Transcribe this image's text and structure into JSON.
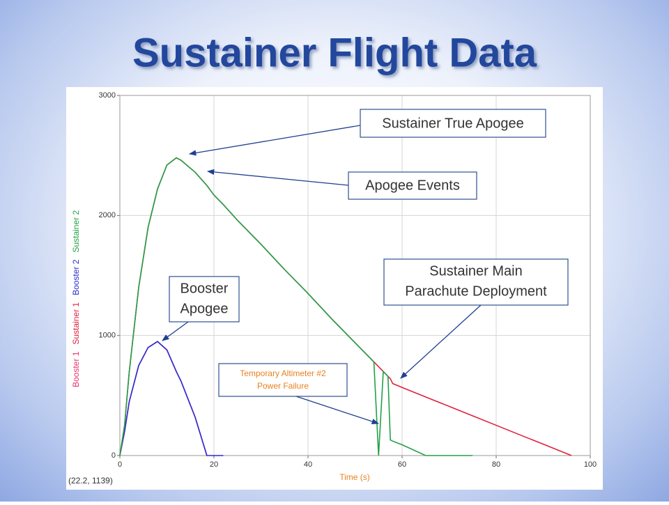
{
  "header": {
    "title": "Sustainer Flight Data"
  },
  "chart_data": {
    "type": "line",
    "x_label": "Time (s)",
    "readout": "(22.2, 1139)",
    "x": [
      0,
      1,
      2,
      4,
      6,
      8,
      10,
      12,
      13,
      16,
      18.5,
      20,
      22,
      25,
      30,
      35,
      40,
      45,
      50,
      54,
      55,
      56,
      57,
      57.5,
      58,
      60,
      65,
      70,
      75,
      80,
      85,
      90,
      96
    ],
    "series": [
      {
        "name": "Booster 1",
        "color": "#e8336b",
        "values": [
          0,
          200,
          450,
          750,
          900,
          950,
          880,
          700,
          620,
          320,
          0,
          null,
          null,
          null,
          null,
          null,
          null,
          null,
          null,
          null,
          null,
          null,
          null,
          null,
          null,
          null,
          null,
          null,
          null,
          null,
          null,
          null,
          null
        ]
      },
      {
        "name": "Sustainer 1",
        "color": "#e0203c",
        "values": [
          0,
          250,
          700,
          1400,
          1900,
          2220,
          2420,
          2480,
          2460,
          2360,
          2250,
          2170,
          2090,
          1960,
          1760,
          1550,
          1350,
          1140,
          940,
          780,
          740,
          700,
          660,
          640,
          600,
          567,
          488,
          410,
          331,
          252,
          173,
          95,
          0
        ]
      },
      {
        "name": "Booster 2",
        "color": "#2b2bd0",
        "values": [
          0,
          200,
          450,
          750,
          900,
          950,
          880,
          700,
          620,
          320,
          0,
          0,
          0,
          null,
          null,
          null,
          null,
          null,
          null,
          null,
          null,
          null,
          null,
          null,
          null,
          null,
          null,
          null,
          null,
          null,
          null,
          null,
          null
        ]
      },
      {
        "name": "Sustainer 2",
        "color": "#23a047",
        "values": [
          0,
          250,
          700,
          1400,
          1900,
          2220,
          2420,
          2480,
          2460,
          2360,
          2250,
          2170,
          2090,
          1960,
          1760,
          1550,
          1350,
          1140,
          940,
          780,
          0,
          700,
          660,
          130,
          120,
          90,
          0,
          0,
          0,
          null,
          null,
          null,
          null
        ]
      }
    ],
    "xlim": [
      0,
      100
    ],
    "ylim": [
      0,
      3000
    ],
    "xticks": [
      0,
      20,
      40,
      60,
      80,
      100
    ],
    "yticks": [
      0,
      1000,
      2000,
      3000
    ],
    "grid": true,
    "annotations": [
      {
        "lines": [
          "Sustainer True Apogee"
        ]
      },
      {
        "lines": [
          "Apogee Events"
        ]
      },
      {
        "lines": [
          "Sustainer Main",
          "Parachute Deployment"
        ]
      },
      {
        "lines": [
          "Booster",
          "Apogee"
        ]
      },
      {
        "lines": [
          "Temporary Altimeter #2",
          "Power Failure"
        ]
      }
    ]
  }
}
